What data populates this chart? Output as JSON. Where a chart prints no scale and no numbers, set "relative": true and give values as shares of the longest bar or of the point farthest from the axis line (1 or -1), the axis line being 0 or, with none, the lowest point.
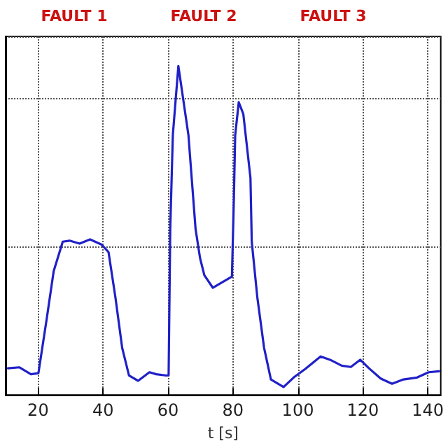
{
  "chart_data": {
    "type": "line",
    "relative": true,
    "xlabel": "t [s]",
    "xlim": [
      10,
      144
    ],
    "xticks": [
      20,
      40,
      60,
      80,
      100,
      120,
      140
    ],
    "grid": true,
    "marker": "none",
    "line_style": "solid",
    "annotations": [
      "FAULT 1",
      "FAULT 2",
      "FAULT 3"
    ],
    "series": [
      {
        "color": "#2020c8",
        "x": [
          10.7,
          14.2,
          17.8,
          20.1,
          22.7,
          24.8,
          27.6,
          29.7,
          32.8,
          36,
          39.6,
          41.7,
          43.8,
          45.9,
          48,
          50.8,
          54.3,
          56.4,
          59.6,
          60.2,
          60.7,
          61.5,
          63.2,
          66.3,
          68.5,
          69.9,
          71.2,
          73.8,
          79.7,
          80.3,
          80.7,
          81.8,
          83.2,
          85.4,
          85.8,
          87.5,
          89.6,
          91.7,
          95.6,
          98.7,
          102.3,
          107,
          109.9,
          113.5,
          116.3,
          119.2,
          121.9,
          125.5,
          129,
          132.5,
          136.7,
          140.3,
          143.5
        ],
        "values": [
          0.081,
          0.084,
          0.063,
          0.066,
          0.234,
          0.376,
          0.466,
          0.469,
          0.46,
          0.473,
          0.457,
          0.434,
          0.298,
          0.143,
          0.059,
          0.043,
          0.069,
          0.063,
          0.059,
          0.06,
          0.504,
          0.79,
          1.0,
          0.79,
          0.504,
          0.415,
          0.364,
          0.326,
          0.36,
          0.6,
          0.79,
          0.89,
          0.854,
          0.66,
          0.466,
          0.298,
          0.143,
          0.047,
          0.024,
          0.053,
          0.079,
          0.117,
          0.107,
          0.089,
          0.085,
          0.107,
          0.081,
          0.05,
          0.034,
          0.047,
          0.053,
          0.069,
          0.072
        ]
      }
    ]
  }
}
